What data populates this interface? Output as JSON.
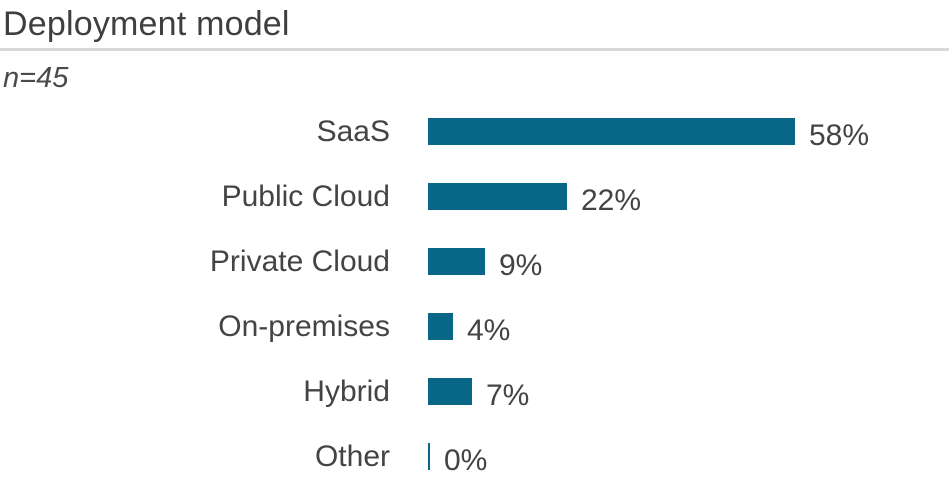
{
  "header": {
    "title": "Deployment model",
    "sample_size": "n=45"
  },
  "chart_data": {
    "type": "bar",
    "orientation": "horizontal",
    "title": "Deployment model",
    "subtitle": "n=45",
    "categories": [
      "SaaS",
      "Public Cloud",
      "Private Cloud",
      "On-premises",
      "Hybrid",
      "Other"
    ],
    "values": [
      58,
      22,
      9,
      4,
      7,
      0
    ],
    "value_labels": [
      "58%",
      "22%",
      "9%",
      "4%",
      "7%",
      "0%"
    ],
    "xlabel": "",
    "ylabel": "",
    "xlim": [
      0,
      100
    ],
    "grid": false,
    "legend": "none",
    "bar_color": "#086786",
    "label_color": "#444444",
    "title_color": "#3f3f3f",
    "divider_color": "#d9d9d9"
  }
}
